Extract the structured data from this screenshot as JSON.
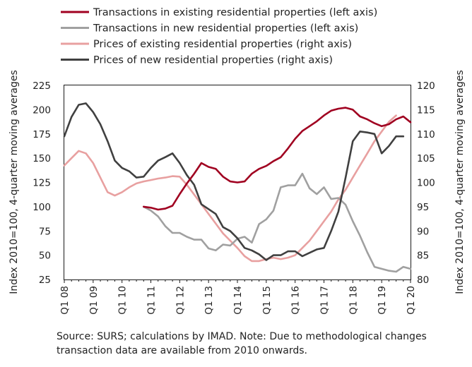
{
  "chart_data": {
    "type": "line",
    "x_labels": [
      "Q1 08",
      "Q1 09",
      "Q1 10",
      "Q1 11",
      "Q1 12",
      "Q1 13",
      "Q1 14",
      "Q1 15",
      "Q1 16",
      "Q1 17",
      "Q1 18",
      "Q1 19",
      "Q1 20"
    ],
    "left_axis": {
      "label": "Index 2010=100, 4-quarter moving averages",
      "min": 25,
      "max": 225,
      "ticks": [
        25,
        50,
        75,
        100,
        125,
        150,
        175,
        200,
        225
      ]
    },
    "right_axis": {
      "label": "Index 2010=100, 4-quarter moving averages",
      "min": 80,
      "max": 120,
      "ticks": [
        80,
        85,
        90,
        95,
        100,
        105,
        110,
        115,
        120
      ]
    },
    "legend_position": "top",
    "series": [
      {
        "name": "Transactions in existing residential properties (left axis)",
        "axis": "left",
        "color": "#a00020",
        "start_quarter": 11,
        "values": [
          100,
          99,
          97,
          98,
          101,
          113,
          124,
          134,
          145,
          141,
          139,
          131,
          126,
          125,
          126,
          134,
          139,
          142,
          147,
          151,
          160,
          170,
          178,
          183,
          188,
          194,
          199,
          201,
          202,
          200,
          193,
          190,
          186,
          183,
          185,
          190,
          193,
          187
        ]
      },
      {
        "name": "Transactions in new residential properties (left axis)",
        "axis": "left",
        "color": "#a0a0a0",
        "start_quarter": 11,
        "values": [
          100,
          96,
          90,
          80,
          73,
          73,
          69,
          66,
          66,
          57,
          55,
          61,
          60,
          67,
          69,
          63,
          82,
          87,
          96,
          120,
          122,
          122,
          134,
          119,
          113,
          120,
          108,
          109,
          102,
          85,
          70,
          53,
          38,
          36,
          34,
          33,
          38,
          36
        ]
      },
      {
        "name": "Prices of existing residential properties (right axis)",
        "axis": "right",
        "color": "#e8a0a0",
        "start_quarter": 0,
        "values": [
          103.5,
          105,
          106.5,
          106,
          104,
          101,
          98,
          97.3,
          98,
          99,
          99.8,
          100.2,
          100.5,
          100.8,
          101,
          101.3,
          101.2,
          99.5,
          97.5,
          95.5,
          93.5,
          91.5,
          89.5,
          88,
          86.5,
          84.8,
          83.8,
          83.8,
          84.2,
          84.5,
          84.2,
          84.5,
          85,
          86.5,
          88,
          90,
          92,
          94,
          96.5,
          98.5,
          101,
          103.5,
          106,
          108.5,
          110.5,
          112.5,
          113.8
        ]
      },
      {
        "name": "Prices of new residential properties (right axis)",
        "axis": "right",
        "color": "#404040",
        "start_quarter": 0,
        "values": [
          109.5,
          113.5,
          116,
          116.3,
          114.5,
          112,
          108.5,
          104.5,
          103,
          102.3,
          101,
          101.2,
          103,
          104.5,
          105.2,
          106,
          104,
          101.5,
          99.5,
          95.5,
          94.5,
          93.5,
          90.8,
          90,
          88.5,
          86.5,
          86,
          85.2,
          84,
          85,
          85,
          85.8,
          85.8,
          84.8,
          85.5,
          86.2,
          86.5,
          90,
          94,
          101,
          108.5,
          110.5,
          110.3,
          110,
          106,
          107.5,
          109.5,
          109.5
        ]
      }
    ]
  },
  "source_text": "Source: SURS; calculations by IMAD. Note: Due to methodological changes transaction data are available from 2010 onwards."
}
